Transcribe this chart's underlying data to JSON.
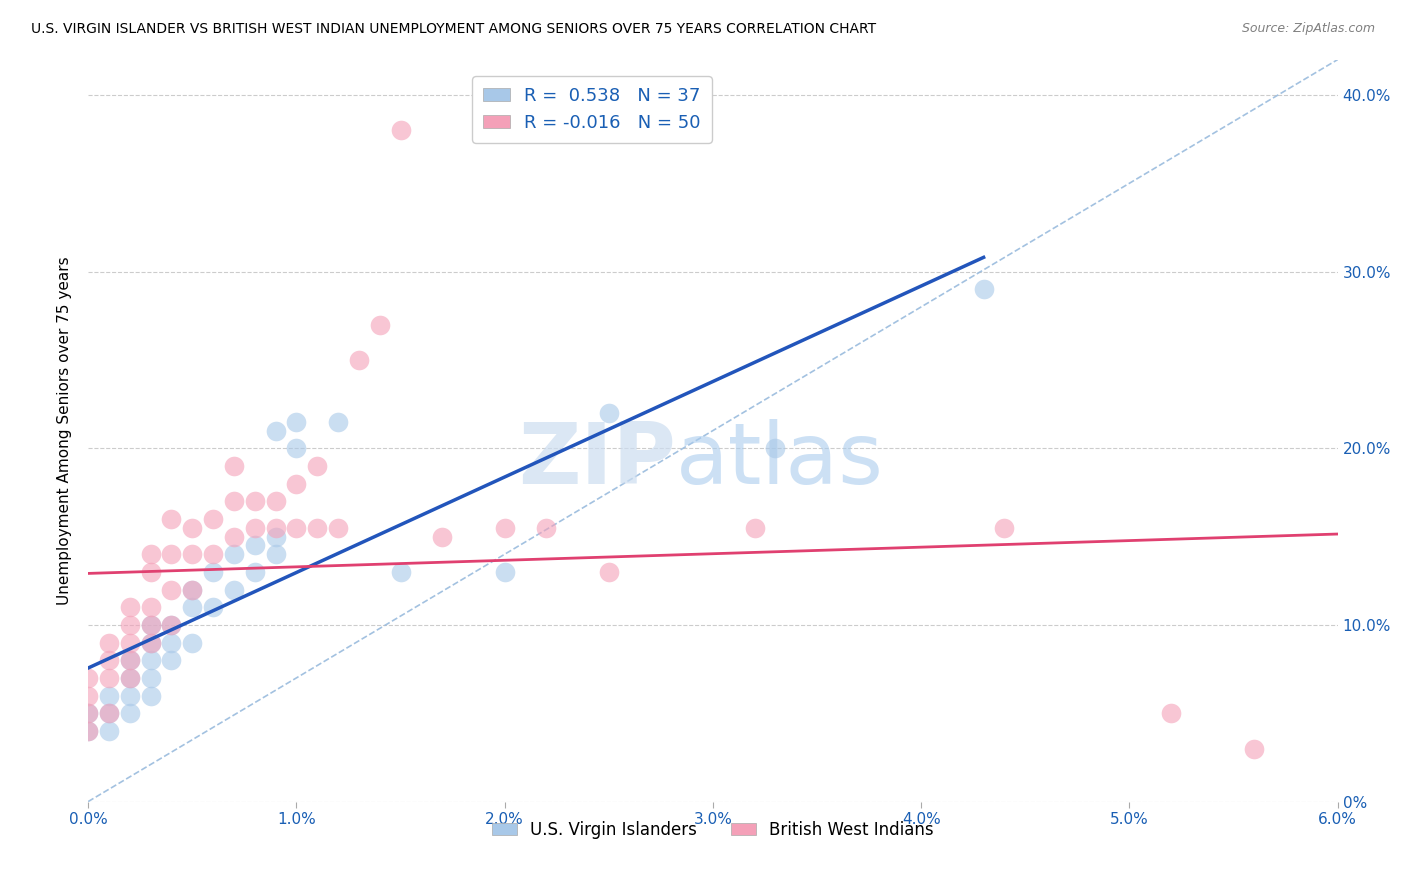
{
  "title": "U.S. VIRGIN ISLANDER VS BRITISH WEST INDIAN UNEMPLOYMENT AMONG SENIORS OVER 75 YEARS CORRELATION CHART",
  "source": "Source: ZipAtlas.com",
  "ylabel": "Unemployment Among Seniors over 75 years",
  "xlim": [
    0.0,
    0.06
  ],
  "ylim": [
    0.0,
    0.42
  ],
  "xtick_labels": [
    "0.0%",
    "1.0%",
    "2.0%",
    "3.0%",
    "4.0%",
    "5.0%",
    "6.0%"
  ],
  "xtick_vals": [
    0.0,
    0.01,
    0.02,
    0.03,
    0.04,
    0.05,
    0.06
  ],
  "ytick_labels_right": [
    "0%",
    "10.0%",
    "20.0%",
    "30.0%",
    "40.0%"
  ],
  "ytick_vals": [
    0.0,
    0.1,
    0.2,
    0.3,
    0.4
  ],
  "blue_R": 0.538,
  "blue_N": 37,
  "pink_R": -0.016,
  "pink_N": 50,
  "blue_color": "#a8c8e8",
  "pink_color": "#f4a0b8",
  "blue_line_color": "#2255bb",
  "pink_line_color": "#e04070",
  "ref_line_color": "#99bbdd",
  "watermark_zip": "ZIP",
  "watermark_atlas": "atlas",
  "legend_label_blue": "U.S. Virgin Islanders",
  "legend_label_pink": "British West Indians",
  "blue_scatter_x": [
    0.0,
    0.0,
    0.001,
    0.001,
    0.001,
    0.002,
    0.002,
    0.002,
    0.002,
    0.003,
    0.003,
    0.003,
    0.003,
    0.003,
    0.004,
    0.004,
    0.004,
    0.005,
    0.005,
    0.005,
    0.006,
    0.006,
    0.007,
    0.007,
    0.008,
    0.008,
    0.009,
    0.009,
    0.009,
    0.01,
    0.01,
    0.012,
    0.015,
    0.02,
    0.025,
    0.033,
    0.043
  ],
  "blue_scatter_y": [
    0.04,
    0.05,
    0.04,
    0.05,
    0.06,
    0.05,
    0.06,
    0.07,
    0.08,
    0.06,
    0.07,
    0.08,
    0.09,
    0.1,
    0.08,
    0.09,
    0.1,
    0.09,
    0.11,
    0.12,
    0.11,
    0.13,
    0.12,
    0.14,
    0.13,
    0.145,
    0.14,
    0.15,
    0.21,
    0.2,
    0.215,
    0.215,
    0.13,
    0.13,
    0.22,
    0.2,
    0.29
  ],
  "pink_scatter_x": [
    0.0,
    0.0,
    0.0,
    0.0,
    0.001,
    0.001,
    0.001,
    0.001,
    0.002,
    0.002,
    0.002,
    0.002,
    0.002,
    0.003,
    0.003,
    0.003,
    0.003,
    0.003,
    0.004,
    0.004,
    0.004,
    0.004,
    0.005,
    0.005,
    0.005,
    0.006,
    0.006,
    0.007,
    0.007,
    0.007,
    0.008,
    0.008,
    0.009,
    0.009,
    0.01,
    0.01,
    0.011,
    0.011,
    0.012,
    0.013,
    0.014,
    0.015,
    0.017,
    0.02,
    0.022,
    0.025,
    0.032,
    0.044,
    0.052,
    0.056
  ],
  "pink_scatter_y": [
    0.04,
    0.05,
    0.06,
    0.07,
    0.05,
    0.07,
    0.08,
    0.09,
    0.07,
    0.08,
    0.09,
    0.1,
    0.11,
    0.09,
    0.1,
    0.11,
    0.13,
    0.14,
    0.1,
    0.12,
    0.14,
    0.16,
    0.12,
    0.14,
    0.155,
    0.14,
    0.16,
    0.15,
    0.17,
    0.19,
    0.155,
    0.17,
    0.155,
    0.17,
    0.155,
    0.18,
    0.155,
    0.19,
    0.155,
    0.25,
    0.27,
    0.38,
    0.15,
    0.155,
    0.155,
    0.13,
    0.155,
    0.155,
    0.05,
    0.03
  ],
  "background_color": "#ffffff",
  "grid_color": "#cccccc"
}
